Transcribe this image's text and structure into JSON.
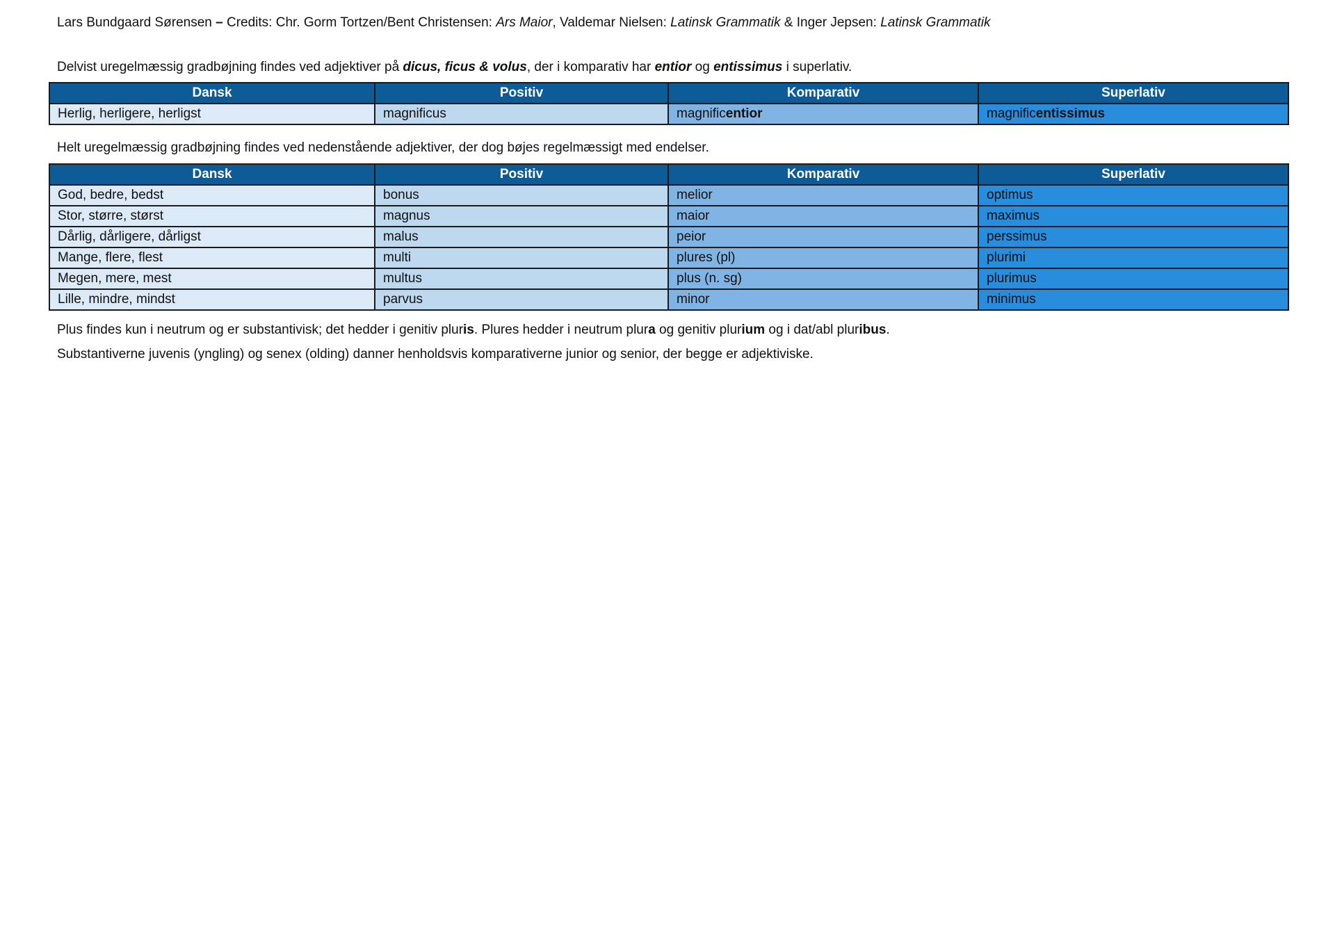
{
  "credits": [
    {
      "t": "Lars Bundgaard Sørensen "
    },
    {
      "t": "–",
      "b": true
    },
    {
      "t": " Credits: Chr. Gorm Tortzen/Bent Christensen: "
    },
    {
      "t": "Ars Maior",
      "i": true
    },
    {
      "t": ", Valdemar Nielsen: "
    },
    {
      "t": "Latinsk Grammatik",
      "i": true
    },
    {
      "t": " & Inger Jepsen: "
    },
    {
      "t": "Latinsk Grammatik",
      "i": true
    }
  ],
  "intro1": [
    {
      "t": "Delvist uregelmæssig gradbøjning findes ved adjektiver på "
    },
    {
      "t": "dicus, ficus & volus",
      "b": true,
      "i": true
    },
    {
      "t": ", der i komparativ har "
    },
    {
      "t": "entior",
      "b": true,
      "i": true
    },
    {
      "t": " og "
    },
    {
      "t": "entissimus",
      "b": true,
      "i": true
    },
    {
      "t": " i superlativ."
    }
  ],
  "headers": [
    "Dansk",
    "Positiv",
    "Komparativ",
    "Superlativ"
  ],
  "table1": [
    [
      [
        {
          "t": "Herlig, herligere, herligst"
        }
      ],
      [
        {
          "t": "magnificus"
        }
      ],
      [
        {
          "t": "magnific"
        },
        {
          "t": "entior",
          "b": true
        }
      ],
      [
        {
          "t": "magnific"
        },
        {
          "t": "entissimus",
          "b": true
        }
      ]
    ]
  ],
  "intro2": [
    {
      "t": "Helt uregelmæssig gradbøjning findes ved nedenstående adjektiver, der dog bøjes regelmæssigt med endelser."
    }
  ],
  "table2": [
    [
      [
        {
          "t": "God, bedre, bedst"
        }
      ],
      [
        {
          "t": "bonus"
        }
      ],
      [
        {
          "t": "melior"
        }
      ],
      [
        {
          "t": "optimus"
        }
      ]
    ],
    [
      [
        {
          "t": "Stor, større, størst"
        }
      ],
      [
        {
          "t": "magnus"
        }
      ],
      [
        {
          "t": "maior"
        }
      ],
      [
        {
          "t": "maximus"
        }
      ]
    ],
    [
      [
        {
          "t": "Dårlig, dårligere, dårligst"
        }
      ],
      [
        {
          "t": "malus"
        }
      ],
      [
        {
          "t": "peior"
        }
      ],
      [
        {
          "t": "perssimus"
        }
      ]
    ],
    [
      [
        {
          "t": "Mange, flere, flest"
        }
      ],
      [
        {
          "t": "multi"
        }
      ],
      [
        {
          "t": "plures (pl)"
        }
      ],
      [
        {
          "t": "plurimi"
        }
      ]
    ],
    [
      [
        {
          "t": "Megen, mere, mest"
        }
      ],
      [
        {
          "t": "multus"
        }
      ],
      [
        {
          "t": "plus (n. sg)"
        }
      ],
      [
        {
          "t": "plurimus"
        }
      ]
    ],
    [
      [
        {
          "t": "Lille, mindre, mindst"
        }
      ],
      [
        {
          "t": "parvus"
        }
      ],
      [
        {
          "t": "minor"
        }
      ],
      [
        {
          "t": "minimus"
        }
      ]
    ]
  ],
  "note1": [
    {
      "t": "Plus findes kun i neutrum og er substantivisk; det hedder i genitiv plur"
    },
    {
      "t": "is",
      "b": true
    },
    {
      "t": ". Plures hedder i neutrum plur"
    },
    {
      "t": "a",
      "b": true
    },
    {
      "t": " og genitiv plur"
    },
    {
      "t": "ium",
      "b": true
    },
    {
      "t": " og i dat/abl plur"
    },
    {
      "t": "ibus",
      "b": true
    },
    {
      "t": "."
    }
  ],
  "note2": [
    {
      "t": "Substantiverne juvenis (yngling) og senex (olding) danner henholdsvis komparativerne junior og senior, der begge er adjektiviske."
    }
  ],
  "colors": {
    "header": "#0d5c97",
    "col_dansk": "#dce9f6",
    "col_positiv": "#bed8f0",
    "col_komparativ": "#80b4e4",
    "col_superlativ": "#288ddc"
  }
}
